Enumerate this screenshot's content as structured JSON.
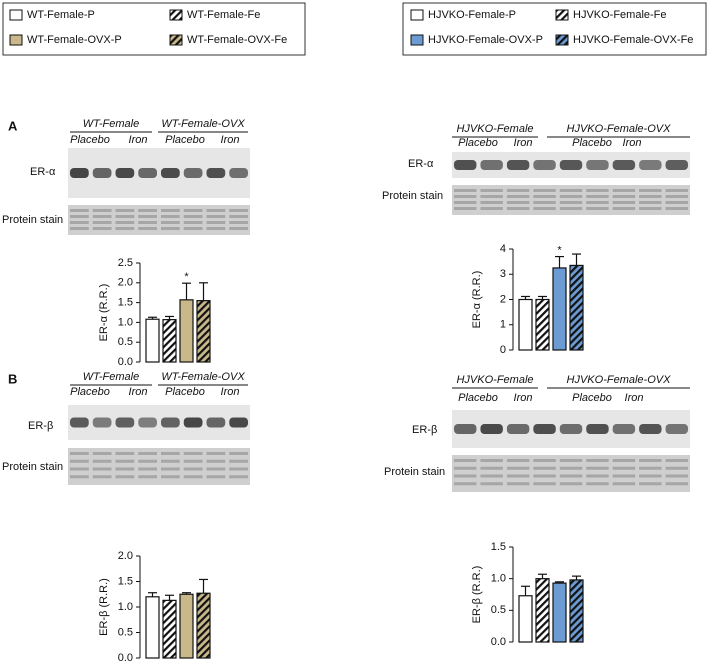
{
  "legends": [
    {
      "entries": [
        "WT-Female-P",
        "WT-Female-Fe",
        "WT-Female-OVX-P",
        "WT-Female-OVX-Fe"
      ]
    },
    {
      "entries": [
        "HJVKO-Female-P",
        "HJVKO-Female-Fe",
        "HJVKO-Female-OVX-P",
        "HJVKO-Female-OVX-Fe"
      ]
    }
  ],
  "panels": [
    "A",
    "B"
  ],
  "blots": [
    {
      "groups": [
        "WT-Female",
        "WT-Female-OVX"
      ],
      "lanes": [
        "Placebo",
        "Iron",
        "Placebo",
        "Iron"
      ],
      "rows": [
        "ER-α",
        "Protein stain"
      ]
    },
    {
      "groups": [
        "HJVKO-Female",
        "HJVKO-Female-OVX"
      ],
      "lanes": [
        "Placebo",
        "Iron",
        "Placebo",
        "Iron"
      ],
      "rows": [
        "ER-α",
        "Protein stain"
      ]
    },
    {
      "groups": [
        "WT-Female",
        "WT-Female-OVX"
      ],
      "lanes": [
        "Placebo",
        "Iron",
        "Placebo",
        "Iron"
      ],
      "rows": [
        "ER-β",
        "Protein stain"
      ]
    },
    {
      "groups": [
        "HJVKO-Female",
        "HJVKO-Female-OVX"
      ],
      "lanes": [
        "Placebo",
        "Iron",
        "Placebo",
        "Iron"
      ],
      "rows": [
        "ER-β",
        "Protein stain"
      ]
    }
  ],
  "chart_data": [
    {
      "type": "bar",
      "ylabel": "ER-α (R.R.)",
      "ylim": [
        0,
        2.5
      ],
      "yticks": [
        {
          "value": 0,
          "label": "0.0"
        },
        0.5,
        {
          "value": 1,
          "label": "1.0"
        },
        1.5,
        {
          "value": 2,
          "label": "2.0"
        },
        2.5
      ],
      "values": [
        1.08,
        1.07,
        1.57,
        1.55
      ],
      "errors": [
        0.05,
        0.08,
        0.42,
        0.45
      ],
      "colors": [
        "#ffffff",
        "#ffffff",
        "#c8b88a",
        "#c8b88a"
      ],
      "hatched": [
        false,
        true,
        false,
        true
      ],
      "value_annotations": [
        null,
        null,
        "*",
        null
      ]
    },
    {
      "type": "bar",
      "ylabel": "ER-α (R.R.)",
      "ylim": [
        0,
        4
      ],
      "yticks": [
        0,
        1,
        2,
        3,
        4
      ],
      "values": [
        2.0,
        2.0,
        3.25,
        3.35
      ],
      "errors": [
        0.12,
        0.12,
        0.45,
        0.45
      ],
      "colors": [
        "#ffffff",
        "#ffffff",
        "#6b9bd2",
        "#6b9bd2"
      ],
      "hatched": [
        false,
        true,
        false,
        true
      ],
      "value_annotations": [
        null,
        null,
        "*",
        null
      ]
    },
    {
      "type": "bar",
      "ylabel": "ER-β (R.R.)",
      "ylim": [
        0,
        2
      ],
      "yticks": [
        {
          "value": 0,
          "label": "0.0"
        },
        0.5,
        {
          "value": 1,
          "label": "1.0"
        },
        1.5,
        {
          "value": 2,
          "label": "2.0"
        }
      ],
      "values": [
        1.2,
        1.13,
        1.25,
        1.27
      ],
      "errors": [
        0.08,
        0.1,
        0.03,
        0.27
      ],
      "colors": [
        "#ffffff",
        "#ffffff",
        "#c8b88a",
        "#c8b88a"
      ],
      "hatched": [
        false,
        true,
        false,
        true
      ]
    },
    {
      "type": "bar",
      "ylabel": "ER-β (R.R.)",
      "ylim": [
        0,
        1.5
      ],
      "yticks": [
        {
          "value": 0,
          "label": "0.0"
        },
        0.5,
        {
          "value": 1,
          "label": "1.0"
        },
        1.5
      ],
      "values": [
        0.73,
        1.0,
        0.93,
        0.98
      ],
      "errors": [
        0.15,
        0.07,
        0.02,
        0.06
      ],
      "colors": [
        "#ffffff",
        "#ffffff",
        "#6b9bd2",
        "#6b9bd2"
      ],
      "hatched": [
        false,
        true,
        false,
        true
      ]
    }
  ]
}
